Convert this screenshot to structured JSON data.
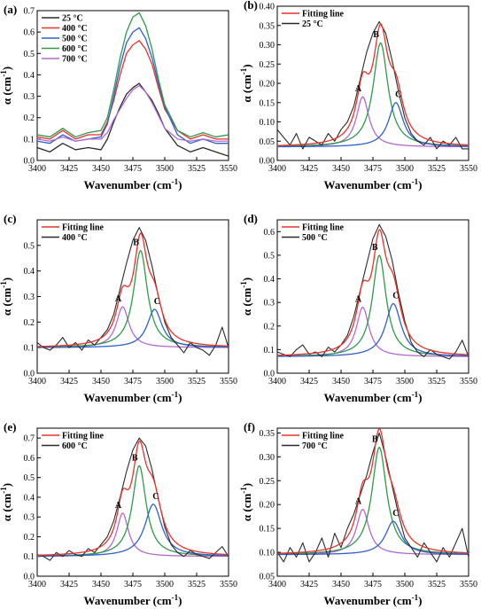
{
  "chart_data": [
    {
      "panel": "(a)",
      "type": "line",
      "xlabel": "Wavenumber (cm",
      "xlabel_sup": "-1",
      "ylabel": "α (cm",
      "ylabel_sup": "-1",
      "xlim": [
        3400,
        3550
      ],
      "ylim": [
        0.0,
        0.7
      ],
      "xticks": [
        3400,
        3425,
        3450,
        3475,
        3500,
        3525,
        3550
      ],
      "yticks": [
        0.0,
        0.1,
        0.2,
        0.3,
        0.4,
        0.5,
        0.6,
        0.7
      ],
      "ytick_labels": [
        "0.0",
        "0.1",
        "0.2",
        "0.3",
        "0.4",
        "0.5",
        "0.6",
        "0.7"
      ],
      "legend_position": "top-left",
      "series": [
        {
          "name": "25 °C",
          "color": "#2b2b2b",
          "x": [
            3400,
            3410,
            3420,
            3430,
            3440,
            3450,
            3455,
            3460,
            3465,
            3470,
            3475,
            3480,
            3485,
            3490,
            3495,
            3500,
            3510,
            3520,
            3530,
            3540,
            3550
          ],
          "y": [
            0.06,
            0.04,
            0.08,
            0.05,
            0.06,
            0.05,
            0.1,
            0.18,
            0.25,
            0.31,
            0.34,
            0.36,
            0.32,
            0.28,
            0.22,
            0.15,
            0.07,
            0.04,
            0.06,
            0.04,
            0.02
          ]
        },
        {
          "name": "400 °C",
          "color": "#e8322a",
          "x": [
            3400,
            3410,
            3420,
            3430,
            3440,
            3450,
            3455,
            3460,
            3465,
            3470,
            3475,
            3480,
            3485,
            3490,
            3495,
            3500,
            3510,
            3520,
            3530,
            3540,
            3550
          ],
          "y": [
            0.11,
            0.1,
            0.14,
            0.1,
            0.12,
            0.12,
            0.18,
            0.28,
            0.4,
            0.5,
            0.54,
            0.56,
            0.52,
            0.45,
            0.34,
            0.24,
            0.14,
            0.1,
            0.12,
            0.1,
            0.1
          ]
        },
        {
          "name": "500 °C",
          "color": "#2f5fd0",
          "x": [
            3400,
            3410,
            3420,
            3430,
            3440,
            3450,
            3455,
            3460,
            3465,
            3470,
            3475,
            3480,
            3485,
            3490,
            3495,
            3500,
            3510,
            3520,
            3530,
            3540,
            3550
          ],
          "y": [
            0.09,
            0.08,
            0.12,
            0.09,
            0.1,
            0.11,
            0.17,
            0.3,
            0.44,
            0.55,
            0.6,
            0.62,
            0.57,
            0.48,
            0.36,
            0.25,
            0.12,
            0.08,
            0.1,
            0.08,
            0.08
          ]
        },
        {
          "name": "600 °C",
          "color": "#2e9a4a",
          "x": [
            3400,
            3410,
            3420,
            3430,
            3440,
            3450,
            3455,
            3460,
            3465,
            3470,
            3475,
            3480,
            3485,
            3490,
            3495,
            3500,
            3510,
            3520,
            3530,
            3540,
            3550
          ],
          "y": [
            0.12,
            0.11,
            0.15,
            0.11,
            0.13,
            0.14,
            0.2,
            0.33,
            0.48,
            0.6,
            0.67,
            0.69,
            0.63,
            0.52,
            0.38,
            0.26,
            0.14,
            0.11,
            0.13,
            0.11,
            0.12
          ]
        },
        {
          "name": "700 °C",
          "color": "#b36ad1",
          "x": [
            3400,
            3410,
            3420,
            3430,
            3440,
            3450,
            3455,
            3460,
            3465,
            3470,
            3475,
            3480,
            3485,
            3490,
            3495,
            3500,
            3510,
            3520,
            3530,
            3540,
            3550
          ],
          "y": [
            0.1,
            0.09,
            0.11,
            0.09,
            0.1,
            0.1,
            0.13,
            0.19,
            0.24,
            0.29,
            0.33,
            0.35,
            0.32,
            0.27,
            0.21,
            0.15,
            0.1,
            0.09,
            0.1,
            0.09,
            0.09
          ]
        }
      ]
    },
    {
      "panel": "(b)",
      "type": "line",
      "xlabel": "Wavenumber (cm",
      "xlabel_sup": "-1",
      "ylabel": "α (cm",
      "ylabel_sup": "-1",
      "xlim": [
        3400,
        3550
      ],
      "ylim": [
        0.0,
        0.4
      ],
      "xticks": [
        3400,
        3425,
        3450,
        3475,
        3500,
        3525,
        3550
      ],
      "yticks": [
        0.0,
        0.05,
        0.1,
        0.15,
        0.2,
        0.25,
        0.3,
        0.35,
        0.4
      ],
      "ytick_labels": [
        "0.00",
        "0.05",
        "0.10",
        "0.15",
        "0.20",
        "0.25",
        "0.30",
        "0.35",
        "0.40"
      ],
      "legend_position": "top-left",
      "baseline": 0.035,
      "measured": {
        "name": "25 °C",
        "color": "#2b2b2b",
        "x": [
          3400,
          3405,
          3410,
          3415,
          3420,
          3425,
          3430,
          3435,
          3440,
          3445,
          3450,
          3455,
          3460,
          3465,
          3470,
          3475,
          3480,
          3485,
          3490,
          3495,
          3500,
          3505,
          3510,
          3515,
          3520,
          3525,
          3530,
          3535,
          3540,
          3545,
          3550
        ],
        "y": [
          0.08,
          0.06,
          0.04,
          0.07,
          0.03,
          0.06,
          0.05,
          0.04,
          0.07,
          0.05,
          0.08,
          0.1,
          0.14,
          0.21,
          0.28,
          0.33,
          0.36,
          0.33,
          0.26,
          0.18,
          0.11,
          0.07,
          0.05,
          0.04,
          0.06,
          0.03,
          0.05,
          0.04,
          0.06,
          0.03,
          0.03
        ]
      },
      "fit": {
        "name": "Fitting line",
        "color": "#e8322a"
      },
      "peaks": [
        {
          "label": "A",
          "center": 3467,
          "height": 0.13,
          "width": 6,
          "color": "#b36ad1"
        },
        {
          "label": "B",
          "center": 3481,
          "height": 0.27,
          "width": 7,
          "color": "#2e9a4a"
        },
        {
          "label": "C",
          "center": 3493,
          "height": 0.115,
          "width": 7,
          "color": "#2f5fd0"
        }
      ]
    },
    {
      "panel": "(c)",
      "type": "line",
      "xlabel": "Wavenumber (cm",
      "xlabel_sup": "-1",
      "ylabel": "α (cm",
      "ylabel_sup": "-1",
      "xlim": [
        3400,
        3550
      ],
      "ylim": [
        0.0,
        0.6
      ],
      "xticks": [
        3400,
        3425,
        3450,
        3475,
        3500,
        3525,
        3550
      ],
      "yticks": [
        0.0,
        0.1,
        0.2,
        0.3,
        0.4,
        0.5
      ],
      "ytick_labels": [
        "0.0",
        "0.1",
        "0.2",
        "0.3",
        "0.4",
        "0.5"
      ],
      "legend_position": "top-left",
      "baseline": 0.1,
      "measured": {
        "name": "400 °C",
        "color": "#2b2b2b",
        "x": [
          3400,
          3405,
          3410,
          3415,
          3420,
          3425,
          3430,
          3435,
          3440,
          3445,
          3450,
          3455,
          3460,
          3465,
          3470,
          3475,
          3480,
          3485,
          3490,
          3495,
          3500,
          3505,
          3510,
          3515,
          3520,
          3525,
          3530,
          3535,
          3540,
          3545,
          3550
        ],
        "y": [
          0.12,
          0.1,
          0.09,
          0.11,
          0.14,
          0.1,
          0.12,
          0.09,
          0.13,
          0.11,
          0.14,
          0.17,
          0.23,
          0.33,
          0.43,
          0.52,
          0.57,
          0.52,
          0.42,
          0.3,
          0.2,
          0.14,
          0.11,
          0.08,
          0.12,
          0.1,
          0.09,
          0.07,
          0.11,
          0.18,
          0.1
        ]
      },
      "fit": {
        "name": "Fitting line",
        "color": "#e8322a"
      },
      "peaks": [
        {
          "label": "A",
          "center": 3467,
          "height": 0.16,
          "width": 6,
          "color": "#b36ad1"
        },
        {
          "label": "B",
          "center": 3481,
          "height": 0.38,
          "width": 6.5,
          "color": "#2e9a4a"
        },
        {
          "label": "C",
          "center": 3492,
          "height": 0.15,
          "width": 7,
          "color": "#2f5fd0"
        }
      ]
    },
    {
      "panel": "(d)",
      "type": "line",
      "xlabel": "Wavenumber (cm",
      "xlabel_sup": "-1",
      "ylabel": "α (cm",
      "ylabel_sup": "-1",
      "xlim": [
        3400,
        3550
      ],
      "ylim": [
        0.0,
        0.65
      ],
      "xticks": [
        3400,
        3425,
        3450,
        3475,
        3500,
        3525,
        3550
      ],
      "yticks": [
        0.0,
        0.1,
        0.2,
        0.3,
        0.4,
        0.5,
        0.6
      ],
      "ytick_labels": [
        "0.0",
        "0.1",
        "0.2",
        "0.3",
        "0.4",
        "0.5",
        "0.6"
      ],
      "legend_position": "top-left",
      "baseline": 0.07,
      "measured": {
        "name": "500 °C",
        "color": "#2b2b2b",
        "x": [
          3400,
          3405,
          3410,
          3415,
          3420,
          3425,
          3430,
          3435,
          3440,
          3445,
          3450,
          3455,
          3460,
          3465,
          3470,
          3475,
          3480,
          3485,
          3490,
          3495,
          3500,
          3505,
          3510,
          3515,
          3520,
          3525,
          3530,
          3535,
          3540,
          3545,
          3550
        ],
        "y": [
          0.09,
          0.08,
          0.07,
          0.1,
          0.12,
          0.08,
          0.09,
          0.07,
          0.11,
          0.09,
          0.12,
          0.16,
          0.24,
          0.35,
          0.46,
          0.57,
          0.63,
          0.58,
          0.48,
          0.34,
          0.22,
          0.13,
          0.09,
          0.07,
          0.1,
          0.08,
          0.07,
          0.06,
          0.09,
          0.14,
          0.07
        ]
      },
      "fit": {
        "name": "Fitting line",
        "color": "#e8322a"
      },
      "peaks": [
        {
          "label": "A",
          "center": 3467,
          "height": 0.21,
          "width": 6,
          "color": "#b36ad1"
        },
        {
          "label": "B",
          "center": 3480,
          "height": 0.43,
          "width": 6.5,
          "color": "#2e9a4a"
        },
        {
          "label": "C",
          "center": 3491,
          "height": 0.225,
          "width": 7.5,
          "color": "#2f5fd0"
        }
      ]
    },
    {
      "panel": "(e)",
      "type": "line",
      "xlabel": "Wavenumber (cm",
      "xlabel_sup": "-1",
      "ylabel": "α (cm",
      "ylabel_sup": "-1",
      "xlim": [
        3400,
        3550
      ],
      "ylim": [
        0.0,
        0.75
      ],
      "xticks": [
        3400,
        3425,
        3450,
        3475,
        3500,
        3525,
        3550
      ],
      "yticks": [
        0.0,
        0.1,
        0.2,
        0.3,
        0.4,
        0.5,
        0.6,
        0.7
      ],
      "ytick_labels": [
        "0.0",
        "0.1",
        "0.2",
        "0.3",
        "0.4",
        "0.5",
        "0.6",
        "0.7"
      ],
      "legend_position": "top-left",
      "baseline": 0.1,
      "measured": {
        "name": "600 °C",
        "color": "#2b2b2b",
        "x": [
          3400,
          3405,
          3410,
          3415,
          3420,
          3425,
          3430,
          3435,
          3440,
          3445,
          3450,
          3455,
          3460,
          3465,
          3470,
          3475,
          3480,
          3485,
          3490,
          3495,
          3500,
          3505,
          3510,
          3515,
          3520,
          3525,
          3530,
          3535,
          3540,
          3545,
          3550
        ],
        "y": [
          0.11,
          0.1,
          0.08,
          0.12,
          0.1,
          0.13,
          0.11,
          0.1,
          0.14,
          0.12,
          0.16,
          0.2,
          0.28,
          0.4,
          0.53,
          0.64,
          0.7,
          0.66,
          0.54,
          0.39,
          0.25,
          0.16,
          0.12,
          0.1,
          0.13,
          0.11,
          0.1,
          0.09,
          0.12,
          0.15,
          0.1
        ]
      },
      "fit": {
        "name": "Fitting line",
        "color": "#e8322a"
      },
      "peaks": [
        {
          "label": "A",
          "center": 3467,
          "height": 0.22,
          "width": 5.5,
          "color": "#b36ad1"
        },
        {
          "label": "B",
          "center": 3480,
          "height": 0.46,
          "width": 6.5,
          "color": "#2e9a4a"
        },
        {
          "label": "C",
          "center": 3491,
          "height": 0.265,
          "width": 8,
          "color": "#2f5fd0"
        }
      ]
    },
    {
      "panel": "(f)",
      "type": "line",
      "xlabel": "Wavenumber (cm",
      "xlabel_sup": "-1",
      "ylabel": "α (cm",
      "ylabel_sup": "-1",
      "xlim": [
        3400,
        3550
      ],
      "ylim": [
        0.05,
        0.36
      ],
      "xticks": [
        3400,
        3425,
        3450,
        3475,
        3500,
        3525,
        3550
      ],
      "yticks": [
        0.05,
        0.1,
        0.15,
        0.2,
        0.25,
        0.3,
        0.35
      ],
      "ytick_labels": [
        "0.05",
        "0.10",
        "0.15",
        "0.20",
        "0.25",
        "0.30",
        "0.35"
      ],
      "legend_position": "top-left",
      "baseline": 0.095,
      "measured": {
        "name": "700 °C",
        "color": "#2b2b2b",
        "x": [
          3400,
          3405,
          3410,
          3415,
          3420,
          3425,
          3430,
          3435,
          3440,
          3445,
          3450,
          3455,
          3460,
          3465,
          3470,
          3475,
          3480,
          3485,
          3490,
          3495,
          3500,
          3505,
          3510,
          3515,
          3520,
          3525,
          3530,
          3535,
          3540,
          3545,
          3550
        ],
        "y": [
          0.1,
          0.08,
          0.11,
          0.09,
          0.12,
          0.08,
          0.1,
          0.13,
          0.09,
          0.14,
          0.11,
          0.15,
          0.18,
          0.22,
          0.26,
          0.31,
          0.35,
          0.3,
          0.24,
          0.18,
          0.13,
          0.11,
          0.09,
          0.12,
          0.1,
          0.08,
          0.11,
          0.09,
          0.12,
          0.15,
          0.09
        ]
      },
      "fit": {
        "name": "Fitting line",
        "color": "#e8322a"
      },
      "peaks": [
        {
          "label": "A",
          "center": 3467,
          "height": 0.095,
          "width": 6,
          "color": "#b36ad1"
        },
        {
          "label": "B",
          "center": 3480,
          "height": 0.225,
          "width": 7,
          "color": "#2e9a4a"
        },
        {
          "label": "C",
          "center": 3491,
          "height": 0.07,
          "width": 7.5,
          "color": "#2f5fd0"
        }
      ]
    }
  ]
}
